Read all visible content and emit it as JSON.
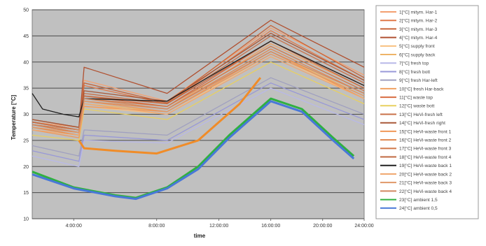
{
  "chart_data": {
    "type": "line",
    "xlabel": "time",
    "ylabel": "Temperature [°C]",
    "ylim": [
      10,
      50
    ],
    "y_ticks": [
      "10",
      "15",
      "20",
      "25",
      "30",
      "35",
      "40",
      "45",
      "50"
    ],
    "xlim": [
      -8,
      24
    ],
    "x_ticks": [
      {
        "value": -4,
        "label": "4:00:00"
      },
      {
        "value": 4,
        "label": "8:00:00"
      },
      {
        "value": 10,
        "label": "12:00:00"
      },
      {
        "value": 15,
        "label": "16:00:00"
      },
      {
        "value": 20,
        "label": "20:00:00"
      },
      {
        "value": 24,
        "label": "24:00:00"
      }
    ],
    "grid": "horizontal",
    "legend_position": "right",
    "plot_background": "#c0c0c0",
    "series": [
      {
        "name": "1[°C] mitym. Har-1",
        "color": "#f4a070",
        "x": [
          -8,
          -3.5,
          -3,
          5,
          15,
          24
        ],
        "y": [
          28.5,
          27.5,
          36.5,
          32.5,
          46.5,
          37.5
        ]
      },
      {
        "name": "2[°C] mitym. Har-2",
        "color": "#e07848",
        "x": [
          -8,
          -3.5,
          -3,
          5,
          15,
          24
        ],
        "y": [
          28,
          26.5,
          35.5,
          32,
          46,
          36.5
        ]
      },
      {
        "name": "3[°C] mitym. Har-3",
        "color": "#c86438",
        "x": [
          -8,
          -3.5,
          -3,
          5,
          15,
          24
        ],
        "y": [
          28.5,
          27,
          36,
          32.2,
          47,
          37
        ]
      },
      {
        "name": "4[°C] mitym. Har-4",
        "color": "#b05030",
        "x": [
          -8,
          -3.5,
          -3,
          5,
          15,
          24
        ],
        "y": [
          29,
          27.5,
          39,
          34,
          48,
          39
        ]
      },
      {
        "name": "5[°C] supply front",
        "color": "#f8c080",
        "x": [
          -8,
          -3.5,
          -3,
          5,
          15,
          24
        ],
        "y": [
          27,
          26,
          31.5,
          30,
          41.5,
          33
        ]
      },
      {
        "name": "6[°C] supply back",
        "color": "#eeb468",
        "x": [
          -8,
          -3.5,
          -3,
          5,
          15,
          24
        ],
        "y": [
          27.5,
          26,
          32,
          30.5,
          42,
          33.5
        ]
      },
      {
        "name": "7[°C] fresh top",
        "color": "#b8b8e8",
        "x": [
          -8,
          -3.5,
          -3,
          5,
          15,
          24
        ],
        "y": [
          22,
          20,
          25,
          24.5,
          35,
          28
        ]
      },
      {
        "name": "8[°C] fresh bott",
        "color": "#9898d8",
        "x": [
          -8,
          -3.5,
          -3,
          5,
          15,
          24
        ],
        "y": [
          23,
          21,
          26,
          25,
          36,
          29
        ]
      },
      {
        "name": "9[°C] fresh Har-left",
        "color": "#a0a0c0",
        "x": [
          -8,
          -3.5,
          -3,
          5,
          15,
          24
        ],
        "y": [
          24,
          22,
          27,
          26,
          37,
          30
        ]
      },
      {
        "name": "10[°C] fresh Har-back",
        "color": "#f0a060",
        "x": [
          -8,
          -3.5,
          -3,
          5,
          15,
          24
        ],
        "y": [
          28,
          26.5,
          33,
          31,
          43.5,
          35
        ]
      },
      {
        "name": "11[°C] waste top",
        "color": "#d86c40",
        "x": [
          -8,
          -3.5,
          -3,
          5,
          15,
          24
        ],
        "y": [
          28,
          27,
          33.5,
          31.5,
          44,
          35.5
        ]
      },
      {
        "name": "12[°C] waste bott",
        "color": "#e8d060",
        "x": [
          -8,
          -3.5,
          -3,
          5,
          15,
          24
        ],
        "y": [
          26,
          25,
          31,
          29,
          40,
          32
        ]
      },
      {
        "name": "13[°C] HeVi-fresh left",
        "color": "#c87048",
        "x": [
          -8,
          -3.5,
          -3,
          5,
          15,
          24
        ],
        "y": [
          28.5,
          27,
          34,
          32,
          45,
          36
        ]
      },
      {
        "name": "14[°C] HeVi-fresh right",
        "color": "#a85838",
        "x": [
          -8,
          -3.5,
          -3,
          5,
          15,
          24
        ],
        "y": [
          29,
          27.5,
          34.5,
          32.5,
          45.5,
          36.5
        ]
      },
      {
        "name": "15[°C] HeVi-waste front 1",
        "color": "#f09858",
        "x": [
          -8,
          -3.5,
          -3,
          5,
          15,
          24
        ],
        "y": [
          27,
          25.5,
          31.5,
          30.5,
          42,
          33
        ]
      },
      {
        "name": "16[°C] HeVi-waste front 2",
        "color": "#e08850",
        "x": [
          -8,
          -3.5,
          -3,
          5,
          15,
          24
        ],
        "y": [
          27.5,
          26,
          32.5,
          31,
          42.5,
          34
        ]
      },
      {
        "name": "17[°C] HeVi-waste front 3",
        "color": "#d07848",
        "x": [
          -8,
          -3.5,
          -3,
          5,
          15,
          24
        ],
        "y": [
          28,
          26.5,
          33,
          31.5,
          43,
          34.5
        ]
      },
      {
        "name": "18[°C] HeVi-waste front 4",
        "color": "#c06840",
        "x": [
          -8,
          -3.5,
          -3,
          5,
          15,
          24
        ],
        "y": [
          28.5,
          27,
          33.5,
          32,
          44,
          35
        ]
      },
      {
        "name": "19[°C] HeVi-waste back 1",
        "color": "#202020",
        "x": [
          -8,
          -7,
          -5,
          -3.5,
          -3,
          5,
          15,
          24
        ],
        "y": [
          34,
          31,
          30,
          29.5,
          33,
          32.5,
          44,
          35.5
        ]
      },
      {
        "name": "20[°C] HeVi-waste back 2",
        "color": "#f0a870",
        "x": [
          -8,
          -3.5,
          -3,
          5,
          15,
          24
        ],
        "y": [
          27,
          26,
          32,
          30,
          41,
          33
        ]
      },
      {
        "name": "21[°C] HeVi-waste back 3",
        "color": "#e09868",
        "x": [
          -8,
          -3.5,
          -3,
          5,
          15,
          24
        ],
        "y": [
          27.5,
          26.5,
          32.5,
          30.5,
          41.5,
          33.5
        ]
      },
      {
        "name": "22[°C] HeVi-waste back 4",
        "color": "#d08860",
        "x": [
          -8,
          -3.5,
          -3,
          5,
          15,
          24
        ],
        "y": [
          28,
          27,
          33,
          31,
          42,
          34
        ]
      },
      {
        "name": "23[°C] ambient 1,5",
        "color": "#30b040",
        "x": [
          -8,
          -4,
          0,
          2,
          5,
          8,
          11,
          15,
          18,
          21,
          23
        ],
        "y": [
          19,
          16,
          14.5,
          14,
          16,
          20,
          26,
          33,
          31,
          25.5,
          22
        ]
      },
      {
        "name": "24[°C] ambient 0,5",
        "color": "#4878d8",
        "x": [
          -8,
          -4,
          0,
          2,
          5,
          8,
          11,
          15,
          18,
          21,
          23
        ],
        "y": [
          18.5,
          15.8,
          14.3,
          13.8,
          15.8,
          19.5,
          25.5,
          32.5,
          30.5,
          25,
          21.5
        ]
      },
      {
        "name": "",
        "color": "#f08c28",
        "x": [
          -3.5,
          -3,
          0,
          4,
          8,
          12,
          14
        ],
        "y": [
          25,
          23.5,
          23,
          22.5,
          25,
          32,
          37
        ]
      }
    ]
  }
}
